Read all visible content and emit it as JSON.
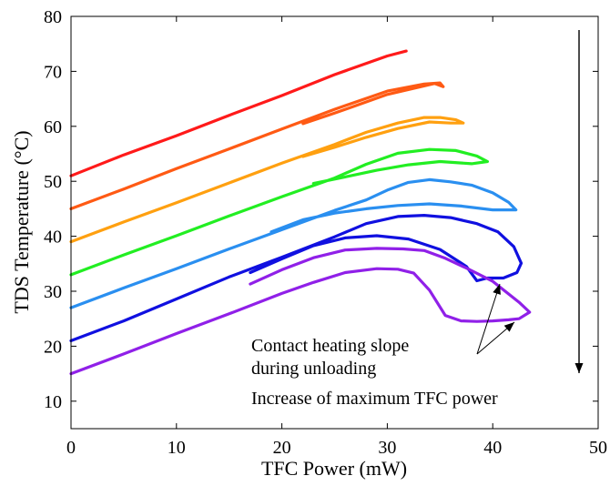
{
  "chart_data": {
    "type": "line",
    "xlabel": "TFC Power (mW)",
    "ylabel": "TDS Temperature (°C)",
    "xlim": [
      0,
      50
    ],
    "ylim": [
      5,
      80
    ],
    "x_ticks": [
      0,
      10,
      20,
      30,
      40,
      50
    ],
    "y_ticks": [
      10,
      20,
      30,
      40,
      50,
      60,
      70,
      80
    ],
    "grid": false,
    "legend": "none",
    "annotations": [
      {
        "text": "Contact heating slope",
        "id": "slope1"
      },
      {
        "text": "during unloading",
        "id": "slope2"
      },
      {
        "text": "Increase of maximum TFC power",
        "id": "increase"
      }
    ],
    "series": [
      {
        "color": "#ff1a1a",
        "x": [
          0,
          5,
          10,
          15,
          20,
          25,
          30,
          31.8
        ],
        "y": [
          51,
          54.8,
          58.3,
          62,
          65.6,
          69.4,
          72.8,
          73.7
        ]
      },
      {
        "color": "#ff5a14",
        "x": [
          0,
          5,
          10,
          15,
          20,
          25,
          30,
          33.5,
          35,
          35.3,
          34.5,
          30,
          25,
          22
        ],
        "y": [
          45,
          48.6,
          52.3,
          55.9,
          59.5,
          63.1,
          66.4,
          67.7,
          67.9,
          67.2,
          67.8,
          65.8,
          62.4,
          60.5
        ]
      },
      {
        "color": "#ffa010",
        "x": [
          0,
          5,
          10,
          15,
          20,
          25,
          28,
          31,
          33.5,
          35,
          36.5,
          37.2,
          36,
          34,
          31,
          28,
          25,
          22
        ],
        "y": [
          39,
          42.6,
          46.1,
          49.7,
          53.3,
          56.7,
          58.9,
          60.6,
          61.6,
          61.6,
          61.2,
          60.6,
          60.6,
          60.8,
          59.6,
          58.0,
          56.2,
          54.5
        ]
      },
      {
        "color": "#22ee22",
        "x": [
          0,
          5,
          10,
          15,
          20,
          25,
          28,
          31,
          34,
          36.5,
          38.5,
          39.5,
          38,
          35,
          32,
          29,
          26,
          23
        ],
        "y": [
          33,
          36.6,
          40.1,
          43.7,
          47.2,
          50.6,
          53.1,
          55.1,
          55.8,
          55.6,
          54.6,
          53.6,
          53.2,
          53.6,
          53.0,
          52.0,
          50.8,
          49.6
        ]
      },
      {
        "color": "#2a8ff0",
        "x": [
          0,
          5,
          10,
          15,
          20,
          25,
          28,
          30,
          32,
          34,
          36,
          38,
          40,
          41.5,
          42.2,
          40,
          37,
          34,
          31,
          28,
          25,
          22,
          19
        ],
        "y": [
          27,
          30.6,
          34.1,
          37.7,
          41.2,
          44.7,
          46.6,
          48.4,
          49.8,
          50.3,
          49.9,
          49.3,
          47.9,
          46.2,
          44.8,
          44.8,
          45.5,
          45.9,
          45.6,
          45.0,
          44.2,
          43.0,
          40.8
        ]
      },
      {
        "color": "#1010e0",
        "x": [
          0,
          5,
          10,
          15,
          20,
          25,
          28,
          31,
          33.5,
          36,
          38.5,
          40.5,
          42,
          42.7,
          42.3,
          41,
          39.5,
          38.5,
          37.5,
          35,
          32,
          29,
          26,
          23,
          20,
          17
        ],
        "y": [
          21,
          24.6,
          28.6,
          32.6,
          36.2,
          39.9,
          42.3,
          43.6,
          43.8,
          43.4,
          42.3,
          40.8,
          38.1,
          35.1,
          33.4,
          32.4,
          32.4,
          31.9,
          34.5,
          37.6,
          39.5,
          40.1,
          39.7,
          38.3,
          35.9,
          33.4
        ]
      },
      {
        "color": "#9020e8",
        "x": [
          0,
          5,
          10,
          15,
          20,
          23,
          26,
          29,
          31,
          32.5,
          34,
          35.5,
          37,
          38.5,
          40,
          41.5,
          42.5,
          43.5,
          42.5,
          40,
          37.5,
          35.5,
          33.5,
          31.5,
          29,
          26,
          23,
          20,
          17
        ],
        "y": [
          15,
          18.6,
          22.3,
          25.9,
          29.6,
          31.6,
          33.4,
          34.1,
          34.0,
          33.3,
          30.2,
          25.6,
          24.6,
          24.5,
          24.6,
          24.8,
          25.0,
          26.2,
          28.0,
          31.8,
          34.2,
          36.0,
          37.4,
          37.7,
          37.8,
          37.5,
          36.1,
          33.9,
          31.3
        ]
      }
    ]
  }
}
